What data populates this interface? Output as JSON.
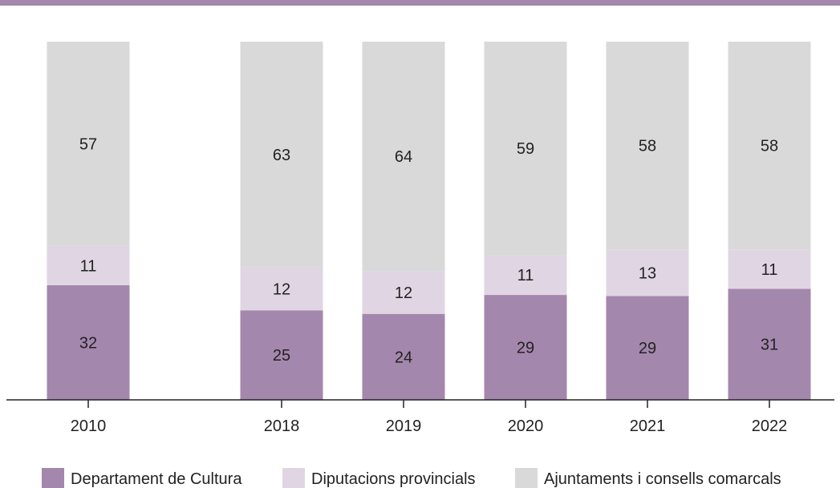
{
  "chart_data": {
    "type": "bar",
    "stacked": true,
    "categories": [
      "2010",
      "2018",
      "2019",
      "2020",
      "2021",
      "2022"
    ],
    "series": [
      {
        "name": "Departament de Cultura",
        "color": "#a487ac",
        "values": [
          32,
          25,
          24,
          29,
          29,
          31
        ]
      },
      {
        "name": "Diputacions provincials",
        "color": "#e0d5e3",
        "values": [
          11,
          12,
          12,
          11,
          13,
          11
        ]
      },
      {
        "name": "Ajuntaments i consells comarcals",
        "color": "#d9d9d9",
        "values": [
          57,
          63,
          64,
          59,
          58,
          58
        ]
      }
    ],
    "ylim": [
      0,
      100
    ],
    "grid": false,
    "legend": "bottom",
    "top_rule_color": "#a487ac"
  }
}
